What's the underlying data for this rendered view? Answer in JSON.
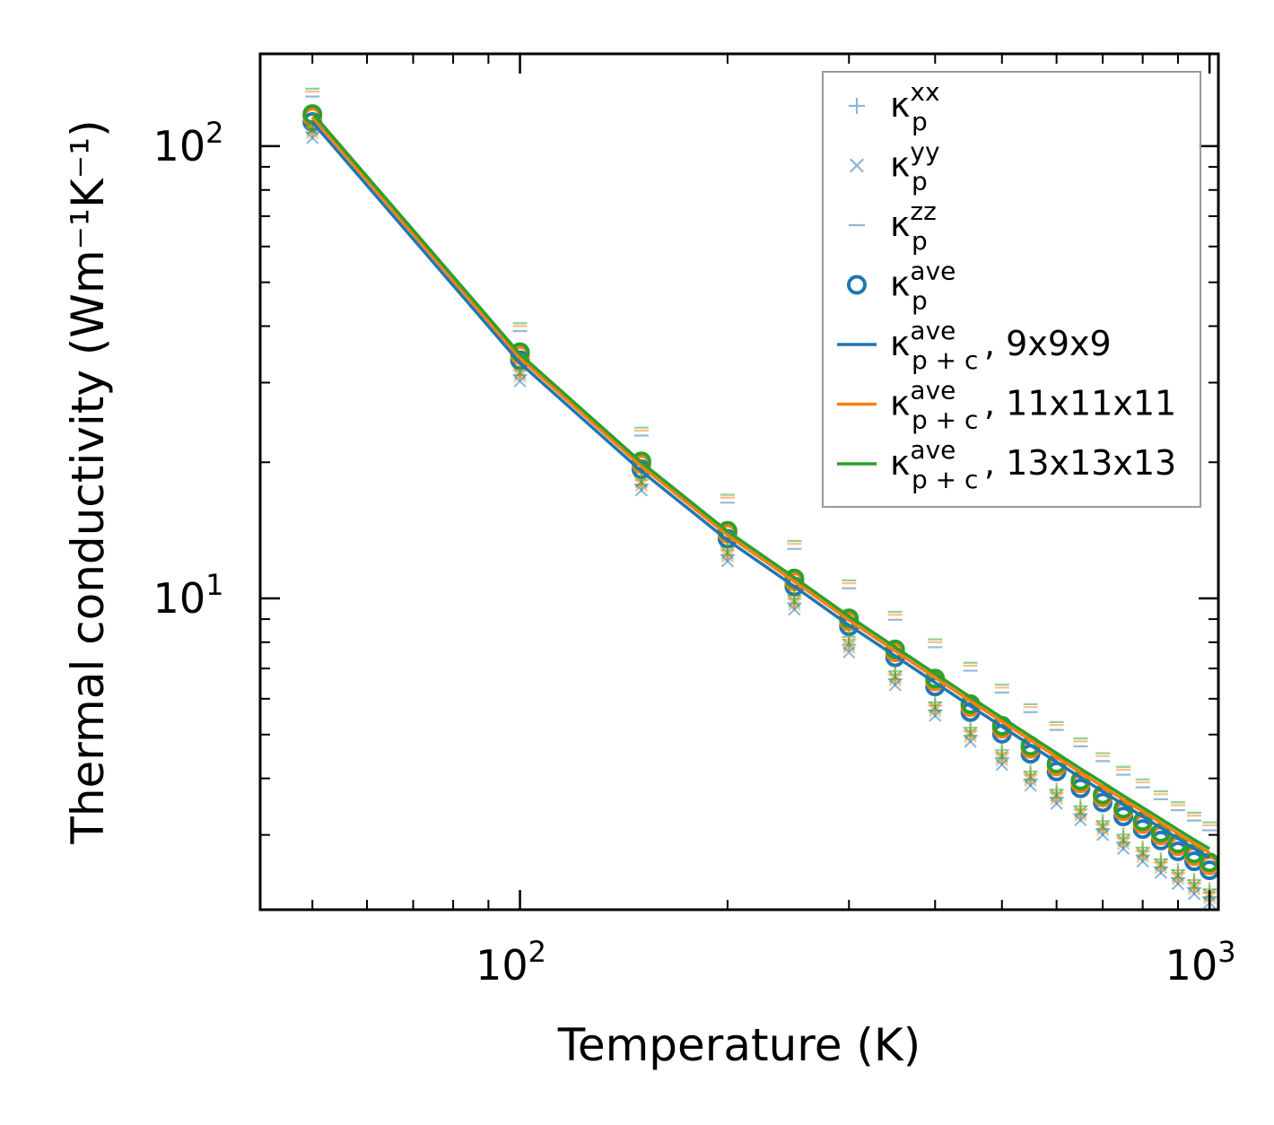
{
  "chart_data": {
    "type": "scatter",
    "scale": "log-log",
    "xlabel": "Temperature (K)",
    "ylabel": "Thermal conductivity (Wm⁻¹K⁻¹)",
    "xlim": [
      42,
      1030
    ],
    "ylim": [
      2.05,
      160
    ],
    "x_ticks": [
      {
        "base": "10",
        "exp": "2",
        "value": 100
      },
      {
        "base": "10",
        "exp": "3",
        "value": 1000
      }
    ],
    "y_ticks": [
      {
        "base": "10",
        "exp": "1",
        "value": 10
      },
      {
        "base": "10",
        "exp": "2",
        "value": 100
      }
    ],
    "temperatures": [
      50,
      100,
      150,
      200,
      250,
      300,
      350,
      400,
      450,
      500,
      550,
      600,
      650,
      700,
      750,
      800,
      850,
      900,
      950,
      1000
    ],
    "scatter_series": [
      {
        "name": "kxx",
        "marker": "plus",
        "values": [
          110,
          32,
          18.3,
          12.8,
          10.0,
          8.1,
          6.8,
          5.8,
          5.1,
          4.55,
          4.08,
          3.72,
          3.42,
          3.17,
          2.96,
          2.77,
          2.61,
          2.47,
          2.35,
          2.24
        ]
      },
      {
        "name": "kyy",
        "marker": "x",
        "values": [
          107,
          31,
          17.8,
          12.4,
          9.7,
          7.8,
          6.6,
          5.65,
          4.95,
          4.4,
          3.96,
          3.61,
          3.32,
          3.08,
          2.87,
          2.69,
          2.54,
          2.4,
          2.28,
          2.18
        ]
      },
      {
        "name": "kzz",
        "marker": "dash",
        "values": [
          132,
          40,
          23.5,
          16.7,
          13.2,
          10.8,
          9.2,
          8.0,
          7.1,
          6.35,
          5.75,
          5.25,
          4.83,
          4.48,
          4.18,
          3.92,
          3.69,
          3.49,
          3.31,
          3.15
        ]
      },
      {
        "name": "kave",
        "marker": "circle",
        "values": [
          116,
          34.5,
          19.8,
          13.9,
          10.9,
          8.9,
          7.6,
          6.55,
          5.75,
          5.15,
          4.65,
          4.25,
          3.9,
          3.63,
          3.38,
          3.17,
          2.99,
          2.83,
          2.69,
          2.57
        ]
      }
    ],
    "grids": [
      {
        "name": "9x9x9",
        "color": "#1f77b4",
        "line_offset": 0.975,
        "point_offset": 0.975
      },
      {
        "name": "11x11x11",
        "color": "#ff7f0e",
        "line_offset": 1.0,
        "point_offset": 1.0
      },
      {
        "name": "13x13x13",
        "color": "#2ca02c",
        "line_offset": 1.02,
        "point_offset": 1.015
      }
    ],
    "line_values": [
      116,
      34,
      19.6,
      13.8,
      10.9,
      8.95,
      7.65,
      6.68,
      5.93,
      5.34,
      4.86,
      4.46,
      4.12,
      3.84,
      3.59,
      3.38,
      3.19,
      3.02,
      2.87,
      2.74
    ],
    "legend": {
      "position": "upper-right",
      "entries": [
        {
          "symbol": "κ",
          "sub": "p",
          "sup": "xx",
          "suffix": "",
          "marker": "plus",
          "color": "#8fb5d5"
        },
        {
          "symbol": "κ",
          "sub": "p",
          "sup": "yy",
          "suffix": "",
          "marker": "x",
          "color": "#8fb5d5"
        },
        {
          "symbol": "κ",
          "sub": "p",
          "sup": "zz",
          "suffix": "",
          "marker": "dash",
          "color": "#8fb5d5"
        },
        {
          "symbol": "κ",
          "sub": "p",
          "sup": "ave",
          "suffix": "",
          "marker": "circle",
          "color": "#1f77b4"
        },
        {
          "symbol": "κ",
          "sub": "p + c",
          "sup": "ave",
          "suffix": ", 9x9x9",
          "marker": "line",
          "color": "#1f77b4"
        },
        {
          "symbol": "κ",
          "sub": "p + c",
          "sup": "ave",
          "suffix": ", 11x11x11",
          "marker": "line",
          "color": "#ff7f0e"
        },
        {
          "symbol": "κ",
          "sub": "p + c",
          "sup": "ave",
          "suffix": ", 13x13x13",
          "marker": "line",
          "color": "#2ca02c"
        }
      ]
    }
  }
}
